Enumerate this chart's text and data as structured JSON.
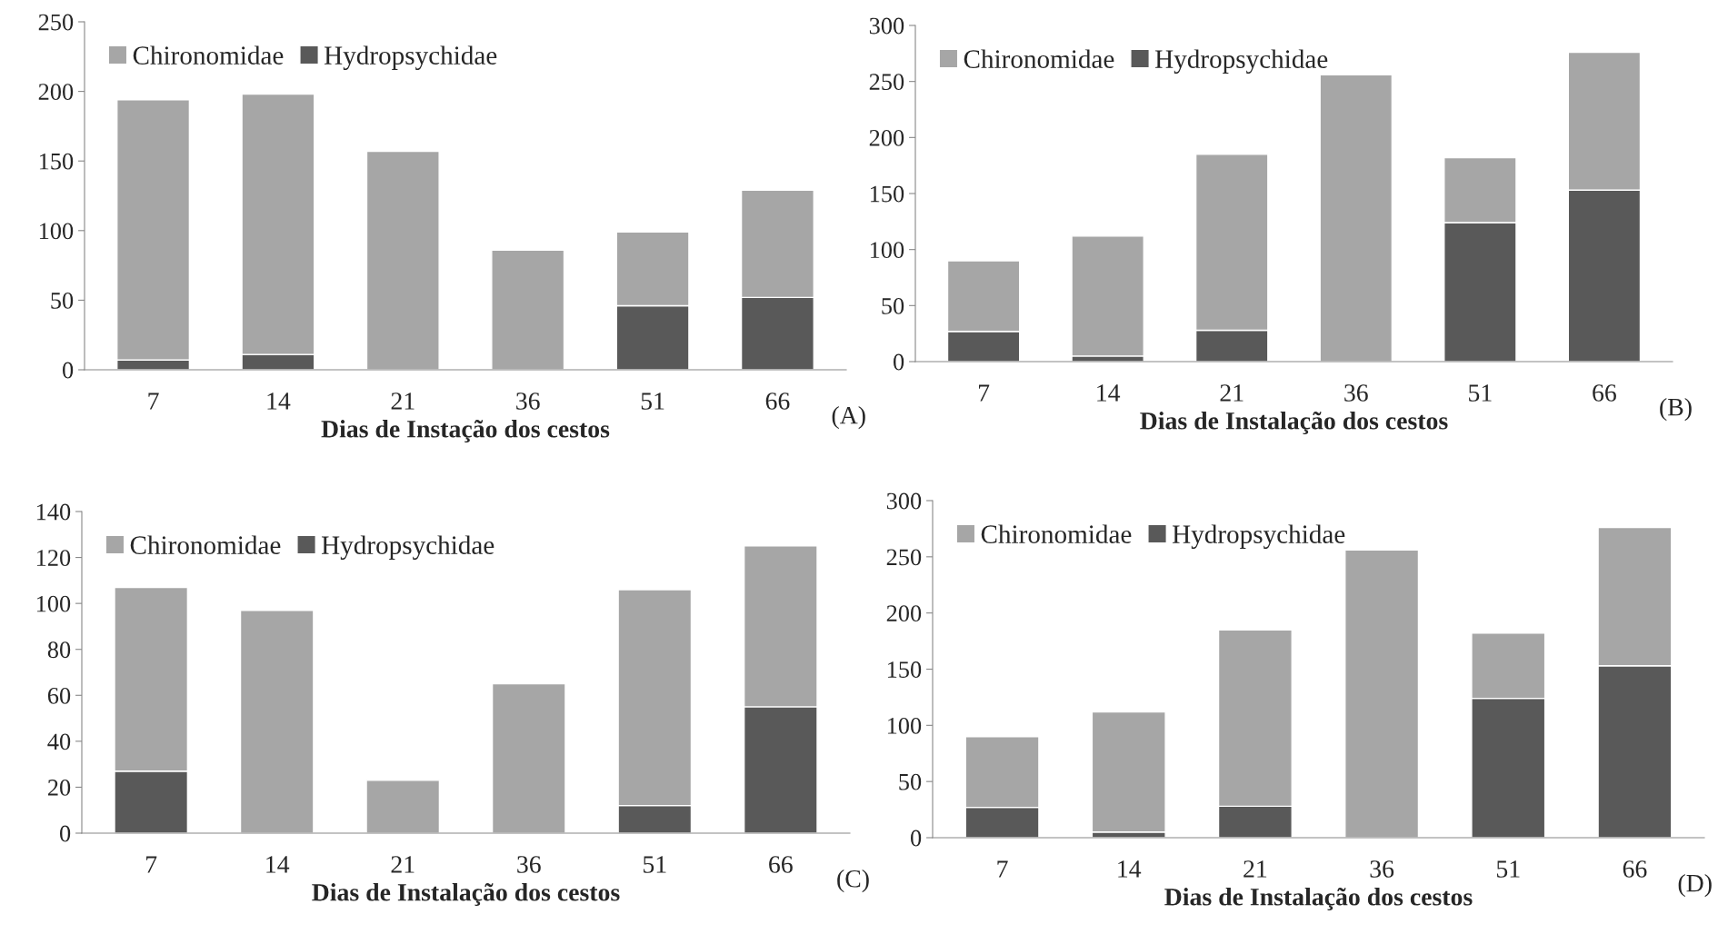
{
  "chart_data": [
    {
      "type": "bar",
      "stacked": true,
      "categories": [
        "7",
        "14",
        "21",
        "36",
        "51",
        "66"
      ],
      "xlabel": "Dias de Instação dos cestos",
      "ylim": [
        0,
        250
      ],
      "yticks": [
        0,
        50,
        100,
        150,
        200,
        250
      ],
      "legend": "top left",
      "grid": false,
      "annotations": [
        "(A)"
      ],
      "series": [
        {
          "name": "Hydropsychidae",
          "color": "#595959",
          "values": [
            7,
            11,
            0,
            0,
            46,
            52
          ]
        },
        {
          "name": "Chironomidae",
          "color": "#a6a6a6",
          "values": [
            187,
            187,
            157,
            86,
            53,
            77
          ]
        }
      ]
    },
    {
      "type": "bar",
      "stacked": true,
      "categories": [
        "7",
        "14",
        "21",
        "36",
        "51",
        "66"
      ],
      "xlabel": "Dias de Instalação dos cestos",
      "ylim": [
        0,
        300
      ],
      "yticks": [
        0,
        50,
        100,
        150,
        200,
        250,
        300
      ],
      "legend": "top left",
      "grid": false,
      "annotations": [
        "(B)"
      ],
      "series": [
        {
          "name": "Hydropsychidae",
          "color": "#595959",
          "values": [
            27,
            5,
            28,
            0,
            124,
            153
          ]
        },
        {
          "name": "Chironomidae",
          "color": "#a6a6a6",
          "values": [
            63,
            107,
            157,
            256,
            58,
            123
          ]
        }
      ]
    },
    {
      "type": "bar",
      "stacked": true,
      "categories": [
        "7",
        "14",
        "21",
        "36",
        "51",
        "66"
      ],
      "xlabel": "Dias de Instalação dos cestos",
      "ylim": [
        0,
        140
      ],
      "yticks": [
        0,
        20,
        40,
        60,
        80,
        100,
        120,
        140
      ],
      "legend": "top left",
      "grid": false,
      "annotations": [
        "(C)"
      ],
      "series": [
        {
          "name": "Hydropsychidae",
          "color": "#595959",
          "values": [
            27,
            0,
            0,
            0,
            12,
            55
          ]
        },
        {
          "name": "Chironomidae",
          "color": "#a6a6a6",
          "values": [
            80,
            97,
            23,
            65,
            94,
            70
          ]
        }
      ]
    },
    {
      "type": "bar",
      "stacked": true,
      "categories": [
        "7",
        "14",
        "21",
        "36",
        "51",
        "66"
      ],
      "xlabel": "Dias de Instalação dos cestos",
      "ylim": [
        0,
        300
      ],
      "yticks": [
        0,
        50,
        100,
        150,
        200,
        250,
        300
      ],
      "legend": "top left",
      "grid": false,
      "annotations": [
        "(D)"
      ],
      "series": [
        {
          "name": "Hydropsychidae",
          "color": "#595959",
          "values": [
            27,
            5,
            28,
            0,
            124,
            153
          ]
        },
        {
          "name": "Chironomidae",
          "color": "#a6a6a6",
          "values": [
            63,
            107,
            157,
            256,
            58,
            123
          ]
        }
      ]
    }
  ]
}
